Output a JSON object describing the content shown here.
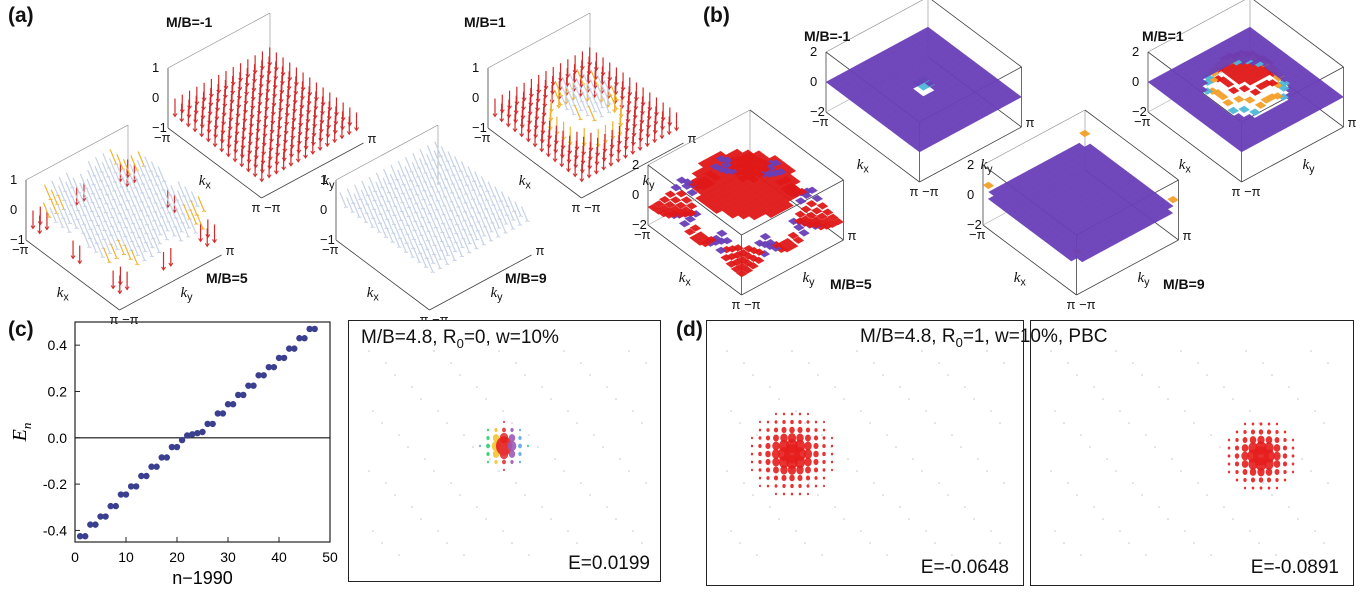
{
  "panels": {
    "a": {
      "letter": "(a)",
      "plots": [
        {
          "label": "M/B=-1",
          "xlabel": "k",
          "xsub": "x",
          "ylabel": "k",
          "ysub": "y",
          "z_ticks": [
            "1",
            "0",
            "−1"
          ],
          "pi": "π",
          "mpi": "−π",
          "skyrmion": "none"
        },
        {
          "label": "M/B=1",
          "xlabel": "k",
          "xsub": "x",
          "ylabel": "k",
          "ysub": "y",
          "z_ticks": [
            "1",
            "0",
            "−1"
          ],
          "pi": "π",
          "mpi": "−π",
          "skyrmion": "center"
        },
        {
          "label": "M/B=5",
          "xlabel": "k",
          "xsub": "x",
          "ylabel": "k",
          "ysub": "y",
          "z_ticks": [
            "1",
            "0",
            "−1"
          ],
          "pi": "π",
          "mpi": "−π",
          "skyrmion": "corners"
        },
        {
          "label": "M/B=9",
          "xlabel": "k",
          "xsub": "x",
          "ylabel": "k",
          "ysub": "y",
          "z_ticks": [
            "1",
            "0",
            "−1"
          ],
          "pi": "π",
          "mpi": "−π",
          "skyrmion": "flat"
        }
      ]
    },
    "b": {
      "letter": "(b)",
      "plots": [
        {
          "label": "M/B=-1",
          "xlabel": "k",
          "xsub": "x",
          "ylabel": "k",
          "ysub": "y",
          "z_ticks": [
            "2",
            "0",
            "−2"
          ],
          "pi": "π",
          "mpi": "−π",
          "surface": "dip"
        },
        {
          "label": "M/B=1",
          "xlabel": "k",
          "xsub": "x",
          "ylabel": "k",
          "ysub": "y",
          "z_ticks": [
            "2",
            "0",
            "−2"
          ],
          "pi": "π",
          "mpi": "−π",
          "surface": "peak"
        },
        {
          "label": "M/B=5",
          "xlabel": "k",
          "xsub": "x",
          "ylabel": "k",
          "ysub": "y",
          "z_ticks": [
            "2",
            "0",
            "−2"
          ],
          "pi": "π",
          "mpi": "−π",
          "surface": "plateau"
        },
        {
          "label": "M/B=9",
          "xlabel": "k",
          "xsub": "x",
          "ylabel": "k",
          "ysub": "y",
          "z_ticks": [
            "2",
            "0",
            "−2"
          ],
          "pi": "π",
          "mpi": "−π",
          "surface": "flat"
        }
      ]
    },
    "c": {
      "letter": "(c)",
      "density_title": "M/B=4.8, R",
      "density_title_sub": "0",
      "density_title_rest": "=0, w=10%",
      "energy": "E=0.0199"
    },
    "d": {
      "letter": "(d)",
      "title": "M/B=4.8, R",
      "title_sub": "0",
      "title_rest": "=1, w=10%, PBC",
      "energies": [
        "E=-0.0648",
        "E=-0.0891"
      ]
    }
  },
  "colors": {
    "arrow_up": "#d42a2a",
    "arrow_down": "#c7d2e6",
    "arrow_mid": "#f1b233",
    "surface_top": "#6a3fb8",
    "surface_high": "#e01818",
    "density": "#e51d1d"
  },
  "chart_data": {
    "type": "scatter",
    "xlabel": "n−1990",
    "ylabel": "E",
    "ylabel_sub": "n",
    "xlim": [
      0,
      50
    ],
    "ylim": [
      -0.45,
      0.5
    ],
    "xticks": [
      0,
      10,
      20,
      30,
      40,
      50
    ],
    "yticks": [
      -0.4,
      -0.2,
      0.0,
      0.2,
      0.4
    ],
    "ytick_labels": [
      "-0.4",
      "-0.2",
      "0.0",
      "0.2",
      "0.4"
    ],
    "hline": 0,
    "series": [
      {
        "x": [
          1,
          2,
          3,
          4,
          5,
          6,
          7,
          8,
          9,
          10,
          11,
          12,
          13,
          14,
          15,
          16,
          17,
          18,
          19,
          20,
          21,
          22,
          23,
          24,
          25,
          26,
          27,
          28,
          29,
          30,
          31,
          32,
          33,
          34,
          35,
          36,
          37,
          38,
          39,
          40,
          41,
          42,
          43,
          44,
          45,
          46,
          47
        ],
        "y": [
          -0.425,
          -0.425,
          -0.375,
          -0.375,
          -0.34,
          -0.34,
          -0.295,
          -0.295,
          -0.245,
          -0.245,
          -0.21,
          -0.21,
          -0.165,
          -0.165,
          -0.125,
          -0.125,
          -0.085,
          -0.085,
          -0.04,
          -0.04,
          -0.01,
          0.01,
          0.015,
          0.02,
          0.025,
          0.06,
          0.06,
          0.105,
          0.105,
          0.145,
          0.145,
          0.185,
          0.185,
          0.225,
          0.225,
          0.27,
          0.27,
          0.305,
          0.305,
          0.345,
          0.345,
          0.385,
          0.385,
          0.43,
          0.43,
          0.47,
          0.47
        ]
      }
    ]
  }
}
